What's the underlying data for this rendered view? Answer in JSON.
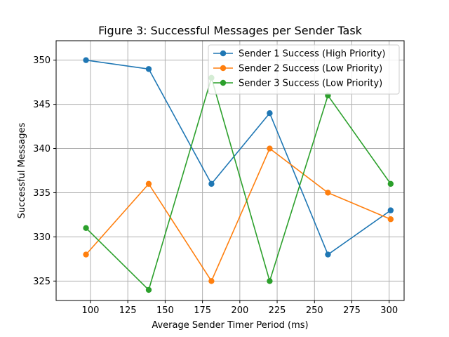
{
  "chart_data": {
    "type": "line",
    "title": "Figure 3: Successful Messages per Sender Task",
    "xlabel": "Average Sender Timer Period (ms)",
    "ylabel": "Successful Messages",
    "xlim": [
      77,
      310
    ],
    "ylim": [
      322.8,
      352.2
    ],
    "x_ticks": [
      100,
      125,
      150,
      175,
      200,
      225,
      250,
      275,
      300
    ],
    "y_ticks": [
      325,
      330,
      335,
      340,
      345,
      350
    ],
    "grid": true,
    "legend_position": "upper-right",
    "series": [
      {
        "name": "Sender 1 Success (High Priority)",
        "color": "#1f77b4",
        "x": [
          97,
          139,
          181,
          220,
          259,
          301
        ],
        "y": [
          350,
          349,
          336,
          344,
          328,
          333
        ]
      },
      {
        "name": "Sender 2 Success (Low Priority)",
        "color": "#ff7f0e",
        "x": [
          97,
          139,
          181,
          220,
          259,
          301
        ],
        "y": [
          328,
          336,
          325,
          340,
          335,
          332
        ]
      },
      {
        "name": "Sender 3 Success (Low Priority)",
        "color": "#2ca02c",
        "x": [
          97,
          139,
          181,
          220,
          259,
          301
        ],
        "y": [
          331,
          324,
          348,
          325,
          346,
          336
        ]
      }
    ]
  }
}
